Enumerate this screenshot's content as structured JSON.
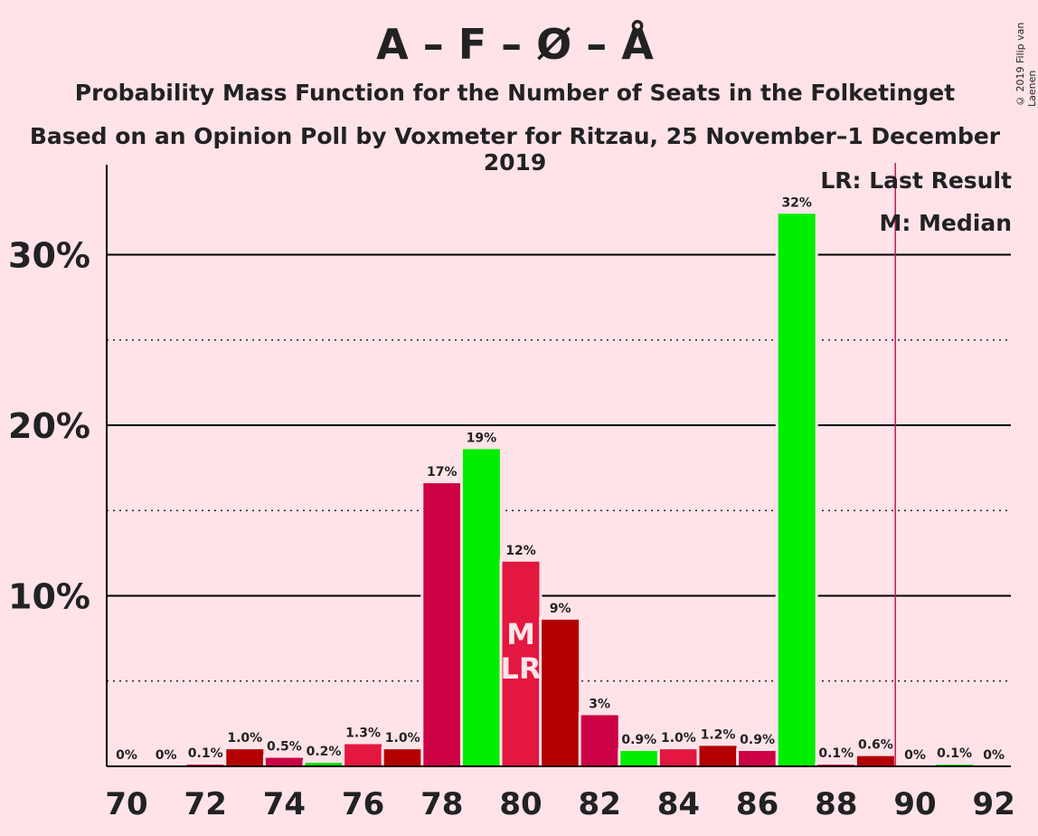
{
  "title": "A – F – Ø – Å",
  "subtitle": "Probability Mass Function for the Number of Seats in the Folketinget",
  "subtitle2": "Based on an Opinion Poll by Voxmeter for Ritzau, 25 November–1 December 2019",
  "copyright": "© 2019 Filip van Laenen",
  "legend": {
    "last_result": "LR: Last Result",
    "median": "M: Median"
  },
  "colors": {
    "background": "#FFE3E8",
    "bar_palette": [
      "#D9003D",
      "#00EE00",
      "#E3173F",
      "#B30000",
      "#CC0044"
    ],
    "majority_line": "#C2185B"
  },
  "chart_data": {
    "type": "bar",
    "categories": [
      70,
      71,
      72,
      73,
      74,
      75,
      76,
      77,
      78,
      79,
      80,
      81,
      82,
      83,
      84,
      85,
      86,
      87,
      88,
      89,
      90,
      91,
      92
    ],
    "values": [
      0,
      0,
      0.1,
      1.0,
      0.5,
      0.2,
      1.3,
      1.0,
      16.6,
      18.6,
      12.0,
      8.6,
      3.0,
      0.9,
      1.0,
      1.2,
      0.9,
      32.4,
      0.1,
      0.6,
      0,
      0.1,
      0
    ],
    "labels": [
      "0%",
      "0%",
      "0.1%",
      "1.0%",
      "0.5%",
      "0.2%",
      "1.3%",
      "1.0%",
      "17%",
      "19%",
      "12%",
      "9%",
      "3%",
      "0.9%",
      "1.0%",
      "1.2%",
      "0.9%",
      "32%",
      "0.1%",
      "0.6%",
      "0%",
      "0.1%",
      "0%"
    ],
    "bar_colors": [
      "#B30000",
      "#CC0044",
      "#D9003D",
      "#B30000",
      "#CC0044",
      "#00DD00",
      "#E3173F",
      "#B30000",
      "#CC0044",
      "#00EE00",
      "#E3173F",
      "#B30000",
      "#CC0044",
      "#00EE00",
      "#E3173F",
      "#B30000",
      "#CC0044",
      "#00EE00",
      "#E3173F",
      "#B30000",
      "#CC0044",
      "#00EE00",
      "#E3173F"
    ],
    "x_tick_labels": [
      "70",
      "72",
      "74",
      "76",
      "78",
      "80",
      "82",
      "84",
      "86",
      "88",
      "90",
      "92"
    ],
    "y_tick_labels": [
      "10%",
      "20%",
      "30%"
    ],
    "ylim": [
      0,
      35
    ],
    "median_seat": 80,
    "median_marker": "M",
    "last_result_seat": 80,
    "last_result_marker": "LR",
    "majority_line_seat": 90,
    "grid": true
  }
}
